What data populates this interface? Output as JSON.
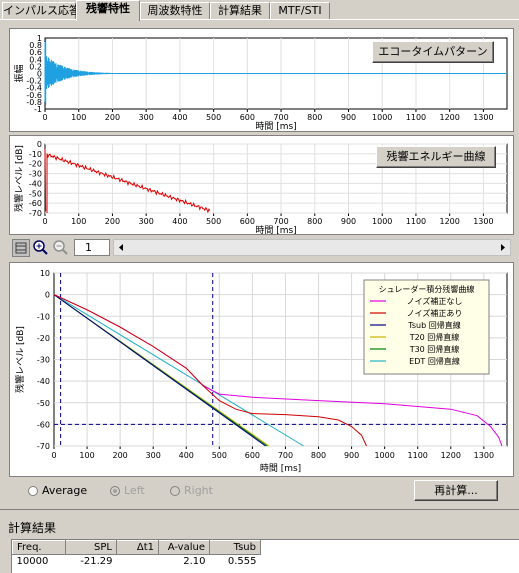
{
  "tabs": [
    "インパルス応答",
    "残響特性",
    "周波数特性",
    "計算結果",
    "MTF/STI"
  ],
  "active_tab": 1,
  "echo_plot": {
    "button": "エコータイムパターン",
    "ylabel": "振幅",
    "xlabel": "時間 [ms]",
    "y_ticks": [
      "1",
      "0.8",
      "0.6",
      "0.4",
      "0.2",
      "0",
      "-0.2",
      "-0.4",
      "-0.6",
      "-0.8",
      "-1"
    ],
    "x_ticks": [
      "0",
      "100",
      "200",
      "300",
      "400",
      "500",
      "600",
      "700",
      "800",
      "900",
      "1000",
      "1100",
      "1200",
      "1300"
    ],
    "x_range": [
      0,
      1370
    ],
    "color": "#1fa0e0"
  },
  "decay_plot": {
    "button": "残響エネルギー曲線",
    "ylabel": "残響レベル [dB]",
    "xlabel": "時間 [ms]",
    "y_ticks": [
      "0",
      "-10",
      "-20",
      "-30",
      "-40",
      "-50",
      "-60",
      "-70"
    ],
    "x_ticks": [
      "0",
      "100",
      "200",
      "300",
      "400",
      "500",
      "600",
      "700",
      "800",
      "900",
      "1000",
      "1100",
      "1200",
      "1300"
    ],
    "x_range": [
      0,
      1370
    ],
    "y_range": [
      -70,
      0
    ],
    "color": "#e00000"
  },
  "toolbar": {
    "page_number": "1"
  },
  "chart_data": {
    "type": "line",
    "ylabel": "残響レベル [dB]",
    "xlabel": "時間 [ms]",
    "xlim": [
      0,
      1370
    ],
    "ylim": [
      -70,
      10
    ],
    "x_ticks": [
      "0",
      "100",
      "200",
      "300",
      "400",
      "500",
      "600",
      "700",
      "800",
      "900",
      "1000",
      "1100",
      "1200",
      "1300"
    ],
    "y_ticks": [
      "10",
      "0",
      "-10",
      "-20",
      "-30",
      "-40",
      "-50",
      "-60",
      "-70"
    ],
    "grid": true,
    "legend_title": "シュレーダー積分残響曲線",
    "legend_position": "top-right",
    "markers": {
      "vline_x": [
        20,
        480
      ],
      "hline_y": -60
    },
    "series": [
      {
        "name": "ノイズ補正なし",
        "color": "#e000e0",
        "points": [
          [
            0,
            0
          ],
          [
            100,
            -7
          ],
          [
            200,
            -15
          ],
          [
            300,
            -24
          ],
          [
            400,
            -34
          ],
          [
            450,
            -42
          ],
          [
            500,
            -46
          ],
          [
            600,
            -47.5
          ],
          [
            800,
            -49
          ],
          [
            1000,
            -50.5
          ],
          [
            1200,
            -53
          ],
          [
            1280,
            -56
          ],
          [
            1320,
            -61
          ],
          [
            1345,
            -66
          ],
          [
            1355,
            -70
          ]
        ]
      },
      {
        "name": "ノイズ補正あり",
        "color": "#d00000",
        "points": [
          [
            0,
            0
          ],
          [
            100,
            -7
          ],
          [
            200,
            -15
          ],
          [
            300,
            -24
          ],
          [
            400,
            -34
          ],
          [
            450,
            -42
          ],
          [
            500,
            -49
          ],
          [
            550,
            -53
          ],
          [
            600,
            -55
          ],
          [
            700,
            -55.5
          ],
          [
            800,
            -56.5
          ],
          [
            860,
            -58
          ],
          [
            900,
            -61
          ],
          [
            930,
            -65
          ],
          [
            945,
            -70
          ]
        ]
      },
      {
        "name": "Tsub 回帰直線",
        "color": "#000080",
        "points": [
          [
            0,
            0
          ],
          [
            640,
            -70
          ]
        ]
      },
      {
        "name": "T20 回帰直線",
        "color": "#c8b400",
        "points": [
          [
            0,
            0
          ],
          [
            650,
            -70
          ]
        ]
      },
      {
        "name": "T30 回帰直線",
        "color": "#008000",
        "points": [
          [
            0,
            0
          ],
          [
            645,
            -70
          ]
        ]
      },
      {
        "name": "EDT 回帰直線",
        "color": "#20b0c8",
        "points": [
          [
            0,
            0
          ],
          [
            755,
            -70
          ]
        ]
      }
    ]
  },
  "options": {
    "radios": [
      {
        "label": "Average",
        "checked": false,
        "enabled": true
      },
      {
        "label": "Left",
        "checked": true,
        "enabled": false
      },
      {
        "label": "Right",
        "checked": false,
        "enabled": false
      }
    ],
    "recalc_button": "再計算..."
  },
  "results": {
    "title": "計算結果",
    "headers": [
      "Freq.",
      "SPL",
      "Δt1",
      "A-value",
      "Tsub"
    ],
    "rows": [
      [
        "10000",
        "-21.29",
        "",
        "2.10",
        "0.555"
      ]
    ]
  }
}
